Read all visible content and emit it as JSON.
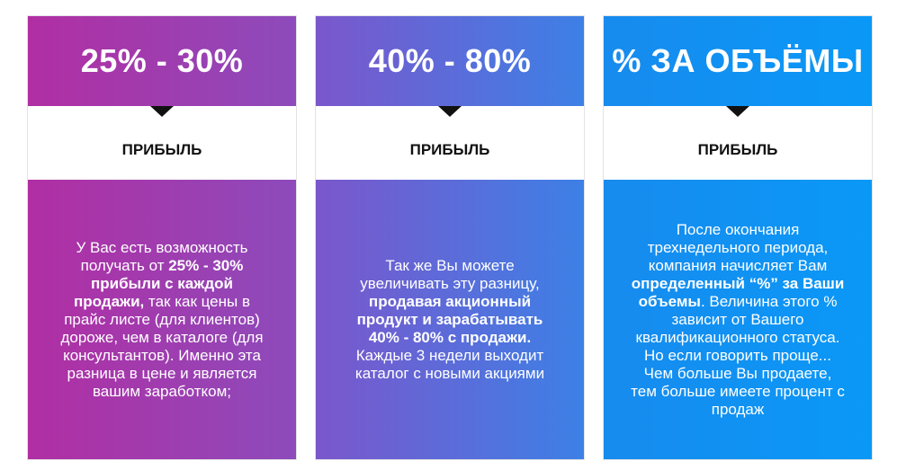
{
  "cards": [
    {
      "title": "25% - 30%",
      "subtitle": "ПРИБЫЛЬ",
      "text_1": "У Вас есть возможность получать от ",
      "bold_1": "25% - 30% прибыли с каждой продажи,",
      "text_2": " так как цены в прайс листе (для клиентов) дороже, чем в каталоге (для консультантов). Именно эта разница в цене и является вашим заработком;"
    },
    {
      "title": "40% - 80%",
      "subtitle": "ПРИБЫЛЬ",
      "text_1": "Так же Вы можете увеличивать эту разницу, ",
      "bold_1": "продавая акционный продукт и зарабатывать 40% - 80% с продажи.",
      "text_2": " Каждые 3 недели выходит каталог с новыми акциями"
    },
    {
      "title": "% ЗА ОБЪЁМЫ",
      "subtitle": "ПРИБЫЛЬ",
      "text_1": "После окончания трехнедельного периода, компания начисляет Вам ",
      "bold_1": "определенный “%” за Ваши объемы",
      "text_2": ". Величина этого % зависит от Вашего квалификационного статуса. Но если говорить проще... Чем больше Вы продаете, тем больше имеете процент с продаж"
    }
  ],
  "colors": {
    "gradient_start": "#b12ea3",
    "gradient_end": "#0a98f7",
    "pointer": "#111111"
  }
}
